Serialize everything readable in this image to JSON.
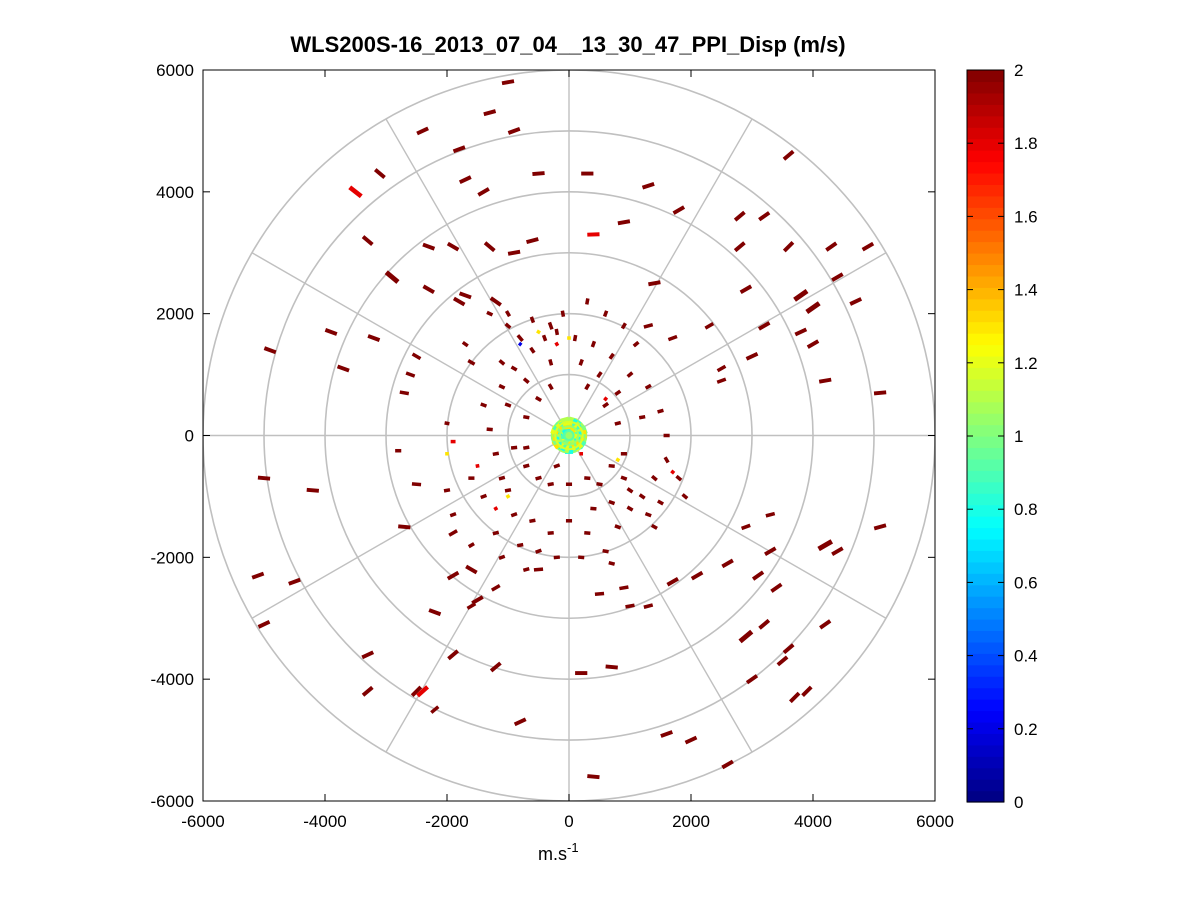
{
  "chart_data": {
    "type": "scatter",
    "subtype": "polar-ppi",
    "title": "WLS200S-16_2013_07_04__13_30_47_PPI_Disp (m/s)",
    "xlabel_base": "m.s",
    "xlabel_sup": "-1",
    "xlim": [
      -6000,
      6000
    ],
    "ylim": [
      -6000,
      6000
    ],
    "xticks": [
      -6000,
      -4000,
      -2000,
      0,
      2000,
      4000,
      6000
    ],
    "yticks": [
      -6000,
      -4000,
      -2000,
      0,
      2000,
      4000,
      6000
    ],
    "xtick_labels": [
      "-6000",
      "-4000",
      "-2000",
      "0",
      "2000",
      "4000",
      "6000"
    ],
    "ytick_labels": [
      "-6000",
      "-4000",
      "-2000",
      "0",
      "2000",
      "4000",
      "6000"
    ],
    "range_rings": [
      1000,
      2000,
      3000,
      4000,
      5000,
      6000
    ],
    "spokes_deg": [
      0,
      30,
      60,
      90,
      120,
      150,
      180,
      210,
      240,
      270,
      300,
      330
    ],
    "colorbar": {
      "min": 0,
      "max": 2,
      "colormap": "jet",
      "ticks": [
        0,
        0.2,
        0.4,
        0.6,
        0.8,
        1,
        1.2,
        1.4,
        1.6,
        1.8,
        2
      ],
      "tick_labels": [
        "0",
        "0.2",
        "0.4",
        "0.6",
        "0.8",
        "1",
        "1.2",
        "1.4",
        "1.6",
        "1.8",
        "2"
      ]
    },
    "core": {
      "radius": 300,
      "value_range": [
        0.8,
        1.3
      ]
    },
    "points": [
      [
        -2400,
        5000,
        2,
        200,
        65
      ],
      [
        -1300,
        5300,
        2,
        200,
        75
      ],
      [
        -1000,
        5800,
        2,
        200,
        80
      ],
      [
        -900,
        5000,
        2,
        200,
        70
      ],
      [
        -3100,
        4300,
        2,
        200,
        130
      ],
      [
        -3500,
        4000,
        1.8,
        240,
        128
      ],
      [
        -1800,
        4700,
        2,
        200,
        70
      ],
      [
        -1700,
        4200,
        2,
        200,
        65
      ],
      [
        -1400,
        4000,
        2,
        200,
        60
      ],
      [
        -500,
        4300,
        2,
        200,
        85
      ],
      [
        300,
        4300,
        2,
        200,
        90
      ],
      [
        1300,
        4100,
        2,
        200,
        72
      ],
      [
        1800,
        3700,
        2,
        200,
        60
      ],
      [
        3600,
        4600,
        2,
        200,
        50
      ],
      [
        -3300,
        3200,
        2,
        200,
        130
      ],
      [
        -2300,
        3100,
        2,
        200,
        110
      ],
      [
        -1900,
        3100,
        2,
        200,
        120
      ],
      [
        -1300,
        3100,
        2,
        200,
        130
      ],
      [
        -900,
        3000,
        2,
        200,
        80
      ],
      [
        -600,
        3200,
        2,
        200,
        75
      ],
      [
        400,
        3300,
        1.8,
        200,
        88
      ],
      [
        900,
        3500,
        2,
        200,
        80
      ],
      [
        2800,
        3600,
        2,
        200,
        50
      ],
      [
        3200,
        3600,
        2,
        200,
        55
      ],
      [
        2800,
        3100,
        2,
        200,
        50
      ],
      [
        3600,
        3100,
        2,
        200,
        45
      ],
      [
        4300,
        3100,
        2,
        200,
        55
      ],
      [
        4900,
        3100,
        2,
        200,
        60
      ],
      [
        -2900,
        2600,
        2,
        250,
        130
      ],
      [
        -2300,
        2400,
        2,
        200,
        120
      ],
      [
        -1700,
        2300,
        2,
        200,
        110
      ],
      [
        -1800,
        2200,
        2,
        200,
        120
      ],
      [
        -1200,
        2200,
        2,
        200,
        125
      ],
      [
        1400,
        2500,
        2,
        200,
        80
      ],
      [
        2900,
        2400,
        2,
        200,
        60
      ],
      [
        3800,
        2300,
        2,
        250,
        55
      ],
      [
        4000,
        2100,
        2,
        250,
        55
      ],
      [
        4400,
        2600,
        2,
        200,
        60
      ],
      [
        4700,
        2200,
        2,
        200,
        65
      ],
      [
        -3900,
        1700,
        2,
        200,
        110
      ],
      [
        -3200,
        1600,
        2,
        200,
        110
      ],
      [
        -2500,
        1300,
        2,
        150,
        120
      ],
      [
        -2600,
        1000,
        2,
        150,
        110
      ],
      [
        1300,
        1800,
        2,
        150,
        75
      ],
      [
        1700,
        1600,
        2,
        150,
        70
      ],
      [
        2300,
        1800,
        2,
        150,
        60
      ],
      [
        3200,
        1800,
        2,
        200,
        60
      ],
      [
        3800,
        1700,
        2,
        200,
        65
      ],
      [
        4000,
        1500,
        2,
        200,
        60
      ],
      [
        3000,
        1300,
        2,
        200,
        65
      ],
      [
        2500,
        1100,
        2,
        150,
        60
      ],
      [
        -4900,
        1400,
        2,
        200,
        110
      ],
      [
        -3700,
        1100,
        2,
        200,
        110
      ],
      [
        -2700,
        700,
        2,
        150,
        100
      ],
      [
        4200,
        900,
        2,
        200,
        80
      ],
      [
        5100,
        700,
        2,
        200,
        85
      ],
      [
        2500,
        900,
        2,
        150,
        70
      ],
      [
        -5000,
        -700,
        2,
        200,
        95
      ],
      [
        -4200,
        -900,
        2,
        200,
        95
      ],
      [
        -2800,
        -250,
        2,
        100,
        90
      ],
      [
        -2700,
        -1500,
        2,
        200,
        95
      ],
      [
        -2500,
        -800,
        2,
        150,
        95
      ],
      [
        -1900,
        -1600,
        2,
        150,
        60
      ],
      [
        -1600,
        -2200,
        2,
        200,
        120
      ],
      [
        -1900,
        -2300,
        2,
        200,
        60
      ],
      [
        -1500,
        -2700,
        2,
        200,
        60
      ],
      [
        -1200,
        -2500,
        2,
        150,
        60
      ],
      [
        -1600,
        -2800,
        2,
        150,
        60
      ],
      [
        -2200,
        -2900,
        2,
        200,
        110
      ],
      [
        -5100,
        -2300,
        2,
        200,
        70
      ],
      [
        -4500,
        -2400,
        2,
        200,
        70
      ],
      [
        -5000,
        -3100,
        2,
        200,
        65
      ],
      [
        -3300,
        -3600,
        2,
        200,
        65
      ],
      [
        -3300,
        -4200,
        2,
        200,
        50
      ],
      [
        -2500,
        -4200,
        2,
        200,
        45
      ],
      [
        -2400,
        -4200,
        1.8,
        220,
        48
      ],
      [
        -2200,
        -4500,
        2,
        150,
        50
      ],
      [
        -1900,
        -3600,
        2,
        200,
        50
      ],
      [
        -1200,
        -3800,
        2,
        200,
        50
      ],
      [
        -800,
        -4700,
        2,
        200,
        65
      ],
      [
        200,
        -3900,
        2,
        200,
        90
      ],
      [
        700,
        -3800,
        2,
        200,
        95
      ],
      [
        400,
        -5600,
        2,
        200,
        95
      ],
      [
        1600,
        -4900,
        2,
        200,
        70
      ],
      [
        2000,
        -5000,
        2,
        200,
        65
      ],
      [
        2600,
        -5400,
        2,
        200,
        60
      ],
      [
        3000,
        -4000,
        2,
        200,
        55
      ],
      [
        3500,
        -3700,
        2,
        200,
        50
      ],
      [
        3700,
        -4300,
        2,
        200,
        45
      ],
      [
        3900,
        -4200,
        2,
        200,
        45
      ],
      [
        3600,
        -3500,
        2,
        200,
        50
      ],
      [
        2900,
        -3300,
        2,
        250,
        50
      ],
      [
        3200,
        -3100,
        2,
        200,
        50
      ],
      [
        4200,
        -3100,
        2,
        200,
        55
      ],
      [
        1700,
        -2400,
        2,
        200,
        60
      ],
      [
        2100,
        -2300,
        2,
        200,
        60
      ],
      [
        2600,
        -2100,
        2,
        200,
        60
      ],
      [
        3100,
        -2300,
        2,
        200,
        55
      ],
      [
        3400,
        -2500,
        2,
        200,
        55
      ],
      [
        3300,
        -1900,
        2,
        200,
        60
      ],
      [
        4200,
        -1800,
        2,
        250,
        60
      ],
      [
        4400,
        -1900,
        2,
        200,
        60
      ],
      [
        5100,
        -1500,
        2,
        200,
        75
      ],
      [
        2900,
        -1500,
        2,
        150,
        70
      ],
      [
        3300,
        -1300,
        2,
        150,
        75
      ],
      [
        900,
        -2500,
        2,
        150,
        80
      ],
      [
        500,
        -2600,
        2,
        150,
        85
      ],
      [
        1000,
        -2800,
        2,
        150,
        80
      ],
      [
        -500,
        -2200,
        2,
        150,
        85
      ],
      [
        1300,
        -2800,
        2,
        150,
        75
      ],
      [
        -1600,
        -700,
        2,
        100,
        90
      ],
      [
        -1000,
        -900,
        2,
        100,
        80
      ],
      [
        -1100,
        -700,
        2,
        100,
        75
      ],
      [
        -1400,
        -1000,
        2,
        100,
        70
      ],
      [
        -900,
        -1300,
        2,
        100,
        70
      ],
      [
        -600,
        -1400,
        2,
        100,
        80
      ],
      [
        -300,
        -1600,
        2,
        100,
        85
      ],
      [
        -800,
        -1800,
        2,
        100,
        80
      ],
      [
        -1200,
        -1600,
        2,
        100,
        75
      ],
      [
        -500,
        -1900,
        2,
        100,
        70
      ],
      [
        0,
        -1400,
        2,
        100,
        90
      ],
      [
        300,
        -1600,
        2,
        100,
        95
      ],
      [
        600,
        -1900,
        2,
        100,
        100
      ],
      [
        800,
        -1500,
        2,
        100,
        110
      ],
      [
        1000,
        -1200,
        2,
        100,
        120
      ],
      [
        1200,
        -1000,
        2,
        100,
        125
      ],
      [
        1400,
        -700,
        2,
        100,
        130
      ],
      [
        1600,
        -400,
        2,
        100,
        150
      ],
      [
        1000,
        -900,
        2,
        100,
        125
      ],
      [
        700,
        -1100,
        2,
        100,
        110
      ],
      [
        1500,
        -1100,
        2,
        100,
        120
      ],
      [
        1300,
        -1300,
        2,
        100,
        110
      ],
      [
        500,
        -800,
        2,
        100,
        100
      ],
      [
        700,
        -500,
        2,
        100,
        95
      ],
      [
        900,
        -300,
        2,
        100,
        90
      ],
      [
        400,
        -1200,
        2,
        100,
        95
      ],
      [
        -300,
        -800,
        2,
        100,
        80
      ],
      [
        -700,
        -500,
        2,
        100,
        75
      ],
      [
        -900,
        -200,
        2,
        100,
        85
      ],
      [
        -1300,
        100,
        2,
        100,
        95
      ],
      [
        -1400,
        500,
        2,
        100,
        110
      ],
      [
        -1100,
        800,
        2,
        100,
        115
      ],
      [
        -900,
        1100,
        2,
        100,
        120
      ],
      [
        -600,
        1400,
        2,
        100,
        145
      ],
      [
        -400,
        1600,
        2,
        100,
        160
      ],
      [
        -200,
        1700,
        2,
        100,
        170
      ],
      [
        100,
        1600,
        2,
        100,
        10
      ],
      [
        400,
        1500,
        2,
        100,
        20
      ],
      [
        700,
        1300,
        2,
        100,
        35
      ],
      [
        1000,
        1000,
        2,
        100,
        50
      ],
      [
        1300,
        800,
        2,
        100,
        60
      ],
      [
        1500,
        400,
        2,
        100,
        75
      ],
      [
        1600,
        0,
        2,
        100,
        90
      ],
      [
        1200,
        300,
        2,
        100,
        80
      ],
      [
        800,
        700,
        2,
        100,
        55
      ],
      [
        500,
        1000,
        2,
        100,
        35
      ],
      [
        -300,
        1200,
        2,
        100,
        165
      ],
      [
        -700,
        900,
        2,
        100,
        130
      ],
      [
        -1000,
        500,
        2,
        100,
        110
      ],
      [
        -1200,
        -300,
        2,
        100,
        80
      ],
      [
        -1600,
        1200,
        2,
        120,
        120
      ],
      [
        -800,
        1600,
        2,
        120,
        140
      ],
      [
        -300,
        1800,
        2,
        120,
        160
      ],
      [
        -500,
        -700,
        2,
        100,
        75
      ],
      [
        -700,
        300,
        2,
        100,
        100
      ],
      [
        -500,
        600,
        2,
        100,
        120
      ],
      [
        -300,
        800,
        2,
        100,
        150
      ],
      [
        300,
        800,
        2,
        100,
        30
      ],
      [
        600,
        500,
        2,
        100,
        55
      ],
      [
        800,
        200,
        2,
        100,
        75
      ],
      [
        900,
        -700,
        2,
        100,
        110
      ],
      [
        300,
        -700,
        2,
        100,
        95
      ],
      [
        0,
        -800,
        2,
        100,
        90
      ],
      [
        -200,
        -500,
        2,
        100,
        70
      ],
      [
        -700,
        -200,
        2,
        100,
        80
      ],
      [
        -1100,
        1200,
        2,
        100,
        130
      ],
      [
        1800,
        -700,
        2,
        100,
        130
      ],
      [
        1900,
        -1000,
        2,
        100,
        130
      ],
      [
        1400,
        -1500,
        2,
        100,
        120
      ],
      [
        -2000,
        200,
        2,
        80,
        100
      ],
      [
        -1900,
        -100,
        1.8,
        80,
        90
      ],
      [
        -1300,
        2000,
        2,
        100,
        115
      ],
      [
        -1000,
        1800,
        2,
        100,
        130
      ],
      [
        -500,
        1700,
        1.3,
        60,
        120
      ],
      [
        -800,
        1500,
        0.2,
        50,
        130
      ],
      [
        1100,
        1500,
        2,
        100,
        50
      ],
      [
        900,
        1800,
        2,
        100,
        30
      ],
      [
        600,
        2000,
        2,
        100,
        20
      ],
      [
        300,
        2200,
        2,
        100,
        10
      ],
      [
        -100,
        2000,
        2,
        100,
        170
      ],
      [
        -600,
        1900,
        2,
        100,
        160
      ],
      [
        -1000,
        2000,
        2,
        100,
        150
      ],
      [
        -1700,
        1500,
        2,
        100,
        125
      ],
      [
        700,
        -2100,
        2,
        100,
        105
      ],
      [
        200,
        -2000,
        2,
        100,
        95
      ],
      [
        -200,
        -2000,
        2,
        100,
        85
      ],
      [
        -700,
        -2200,
        2,
        100,
        75
      ],
      [
        -1100,
        -2000,
        2,
        100,
        70
      ],
      [
        -1600,
        -1800,
        2,
        100,
        60
      ],
      [
        -1900,
        -1300,
        2,
        100,
        70
      ],
      [
        -2000,
        -900,
        2,
        100,
        80
      ],
      [
        -2000,
        -300,
        1.3,
        60,
        90
      ],
      [
        -1200,
        -1200,
        1.8,
        60,
        60
      ],
      [
        200,
        -300,
        1.8,
        60,
        90
      ],
      [
        800,
        -400,
        1.3,
        60,
        120
      ],
      [
        1700,
        -600,
        1.8,
        60,
        130
      ],
      [
        -1000,
        -1000,
        1.3,
        60,
        60
      ],
      [
        -1500,
        -500,
        1.8,
        60,
        80
      ],
      [
        600,
        600,
        1.8,
        60,
        40
      ],
      [
        -200,
        1500,
        1.8,
        60,
        150
      ],
      [
        0,
        1600,
        1.3,
        60,
        90
      ],
      [
        200,
        1200,
        2,
        100,
        20
      ]
    ]
  }
}
